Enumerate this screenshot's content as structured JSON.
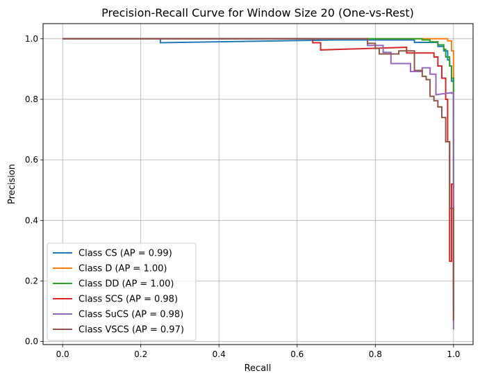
{
  "chart_data": {
    "type": "line",
    "title": "Precision-Recall Curve for Window Size 20 (One-vs-Rest)",
    "xlabel": "Recall",
    "ylabel": "Precision",
    "xlim": [
      -0.05,
      1.05
    ],
    "ylim": [
      -0.01,
      1.05
    ],
    "xticks": [
      0.0,
      0.2,
      0.4,
      0.6,
      0.8,
      1.0
    ],
    "xtick_labels": [
      "0.0",
      "0.2",
      "0.4",
      "0.6",
      "0.8",
      "1.0"
    ],
    "yticks": [
      0.0,
      0.2,
      0.4,
      0.6,
      0.8,
      1.0
    ],
    "ytick_labels": [
      "0.0",
      "0.2",
      "0.4",
      "0.6",
      "0.8",
      "1.0"
    ],
    "grid": true,
    "legend_position": "lower-left",
    "series": [
      {
        "name": "Class CS (AP = 0.99)",
        "color": "#1f77b4",
        "points": [
          [
            0.0,
            1.0
          ],
          [
            0.25,
            1.0
          ],
          [
            0.25,
            0.987
          ],
          [
            0.5,
            0.992
          ],
          [
            0.7,
            0.996
          ],
          [
            0.9,
            0.996
          ],
          [
            0.9,
            0.988
          ],
          [
            0.96,
            0.988
          ],
          [
            0.96,
            0.975
          ],
          [
            0.975,
            0.975
          ],
          [
            0.975,
            0.96
          ],
          [
            0.985,
            0.96
          ],
          [
            0.985,
            0.93
          ],
          [
            0.99,
            0.93
          ],
          [
            0.99,
            0.91
          ],
          [
            0.995,
            0.91
          ],
          [
            0.995,
            0.86
          ],
          [
            1.0,
            0.86
          ],
          [
            1.0,
            0.17
          ]
        ]
      },
      {
        "name": "Class D (AP = 1.00)",
        "color": "#ff7f0e",
        "points": [
          [
            0.0,
            1.0
          ],
          [
            0.93,
            1.0
          ],
          [
            0.985,
            1.0
          ],
          [
            0.985,
            0.993
          ],
          [
            0.995,
            0.993
          ],
          [
            0.995,
            0.96
          ],
          [
            1.0,
            0.96
          ],
          [
            1.0,
            0.13
          ]
        ]
      },
      {
        "name": "Class DD (AP = 1.00)",
        "color": "#2ca02c",
        "points": [
          [
            0.0,
            1.0
          ],
          [
            0.92,
            1.0
          ],
          [
            0.92,
            0.996
          ],
          [
            0.94,
            0.996
          ],
          [
            0.94,
            0.99
          ],
          [
            0.96,
            0.99
          ],
          [
            0.96,
            0.98
          ],
          [
            0.975,
            0.98
          ],
          [
            0.975,
            0.965
          ],
          [
            0.98,
            0.965
          ],
          [
            0.98,
            0.94
          ],
          [
            0.99,
            0.94
          ],
          [
            0.99,
            0.91
          ],
          [
            0.995,
            0.91
          ],
          [
            0.995,
            0.87
          ],
          [
            1.0,
            0.87
          ],
          [
            1.0,
            0.11
          ]
        ]
      },
      {
        "name": "Class SCS (AP = 0.98)",
        "color": "#d62728",
        "points": [
          [
            0.0,
            1.0
          ],
          [
            0.64,
            1.0
          ],
          [
            0.64,
            0.987
          ],
          [
            0.66,
            0.987
          ],
          [
            0.66,
            0.963
          ],
          [
            0.88,
            0.972
          ],
          [
            0.88,
            0.953
          ],
          [
            0.95,
            0.953
          ],
          [
            0.95,
            0.94
          ],
          [
            0.96,
            0.94
          ],
          [
            0.96,
            0.91
          ],
          [
            0.97,
            0.91
          ],
          [
            0.97,
            0.87
          ],
          [
            0.98,
            0.87
          ],
          [
            0.98,
            0.8
          ],
          [
            0.985,
            0.8
          ],
          [
            0.985,
            0.66
          ],
          [
            0.99,
            0.66
          ],
          [
            0.99,
            0.265
          ],
          [
            0.995,
            0.265
          ],
          [
            0.995,
            0.52
          ],
          [
            1.0,
            0.52
          ],
          [
            1.0,
            0.07
          ]
        ]
      },
      {
        "name": "Class SuCS (AP = 0.98)",
        "color": "#9467bd",
        "points": [
          [
            0.0,
            1.0
          ],
          [
            0.78,
            1.0
          ],
          [
            0.78,
            0.978
          ],
          [
            0.82,
            0.978
          ],
          [
            0.82,
            0.955
          ],
          [
            0.84,
            0.955
          ],
          [
            0.84,
            0.918
          ],
          [
            0.89,
            0.918
          ],
          [
            0.89,
            0.892
          ],
          [
            0.92,
            0.892
          ],
          [
            0.92,
            0.904
          ],
          [
            0.94,
            0.904
          ],
          [
            0.94,
            0.883
          ],
          [
            0.955,
            0.883
          ],
          [
            0.955,
            0.815
          ],
          [
            0.995,
            0.822
          ],
          [
            0.995,
            0.82
          ],
          [
            1.0,
            0.82
          ],
          [
            1.0,
            0.04
          ]
        ]
      },
      {
        "name": "Class VSCS (AP = 0.97)",
        "color": "#8c564b",
        "points": [
          [
            0.0,
            1.0
          ],
          [
            0.78,
            1.0
          ],
          [
            0.78,
            0.985
          ],
          [
            0.8,
            0.985
          ],
          [
            0.8,
            0.968
          ],
          [
            0.81,
            0.968
          ],
          [
            0.81,
            0.95
          ],
          [
            0.86,
            0.95
          ],
          [
            0.86,
            0.96
          ],
          [
            0.9,
            0.96
          ],
          [
            0.9,
            0.895
          ],
          [
            0.92,
            0.895
          ],
          [
            0.92,
            0.876
          ],
          [
            0.93,
            0.876
          ],
          [
            0.93,
            0.865
          ],
          [
            0.94,
            0.865
          ],
          [
            0.94,
            0.81
          ],
          [
            0.95,
            0.81
          ],
          [
            0.95,
            0.795
          ],
          [
            0.96,
            0.795
          ],
          [
            0.96,
            0.775
          ],
          [
            0.97,
            0.775
          ],
          [
            0.97,
            0.74
          ],
          [
            0.98,
            0.74
          ],
          [
            0.98,
            0.66
          ],
          [
            0.99,
            0.66
          ],
          [
            0.99,
            0.44
          ],
          [
            0.995,
            0.44
          ],
          [
            0.995,
            0.44
          ],
          [
            1.0,
            0.44
          ],
          [
            1.0,
            0.07
          ]
        ]
      }
    ]
  }
}
